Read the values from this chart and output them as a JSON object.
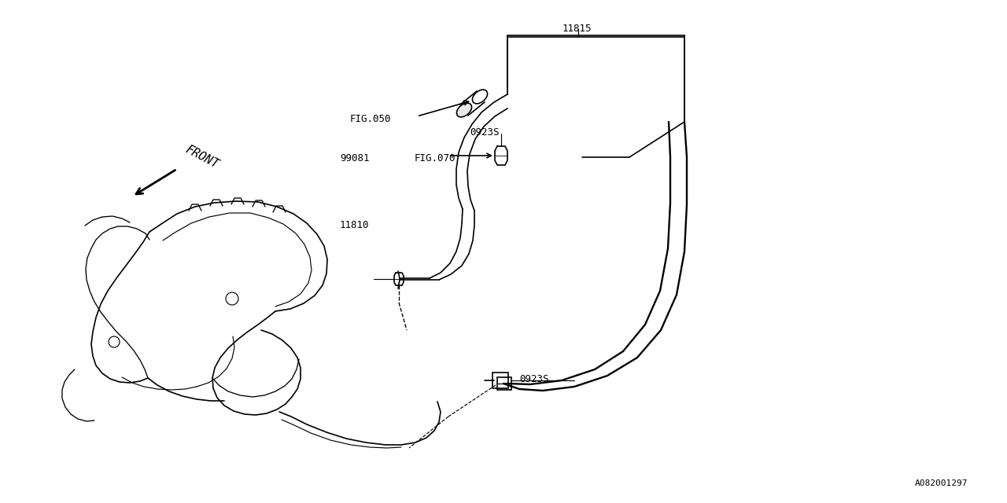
{
  "background_color": "#ffffff",
  "line_color": "#000000",
  "font_family": "monospace",
  "label_texts": {
    "11815": "11815",
    "0923S_top": "0923S",
    "FIG050": "FIG.050",
    "99081": "99081",
    "FIG070": "FIG.070",
    "11810": "11810",
    "0923S_bottom": "0923S",
    "FRONT": "FRONT",
    "watermark": "A082001297"
  },
  "fontsize": 9,
  "small_fontsize": 8
}
